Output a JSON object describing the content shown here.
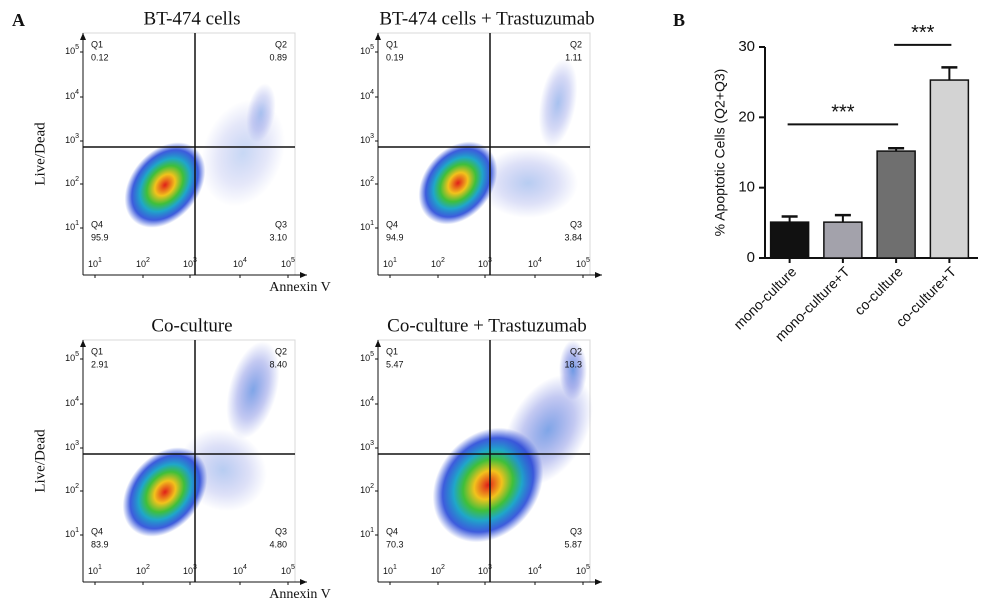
{
  "figure": {
    "panel_a": "A",
    "panel_b": "B",
    "tick_base": "10",
    "tick_exponents": [
      "1",
      "2",
      "3",
      "4",
      "5"
    ],
    "rows": [
      {
        "y_label": "Live/Dead",
        "x_label": "Annexin V",
        "plots": [
          {
            "title": "BT-474 cells",
            "quadrants": [
              {
                "name": "Q1",
                "value": "0.12"
              },
              {
                "name": "Q2",
                "value": "0.89"
              },
              {
                "name": "Q3",
                "value": "3.10"
              },
              {
                "name": "Q4",
                "value": "95.9"
              }
            ]
          },
          {
            "title": "BT-474 cells + Trastuzumab",
            "quadrants": [
              {
                "name": "Q1",
                "value": "0.19"
              },
              {
                "name": "Q2",
                "value": "1.11"
              },
              {
                "name": "Q3",
                "value": "3.84"
              },
              {
                "name": "Q4",
                "value": "94.9"
              }
            ]
          }
        ]
      },
      {
        "y_label": "Live/Dead",
        "x_label": "Annexin V",
        "plots": [
          {
            "title": "Co-culture",
            "quadrants": [
              {
                "name": "Q1",
                "value": "2.91"
              },
              {
                "name": "Q2",
                "value": "8.40"
              },
              {
                "name": "Q3",
                "value": "4.80"
              },
              {
                "name": "Q4",
                "value": "83.9"
              }
            ]
          },
          {
            "title": "Co-culture + Trastuzumab",
            "quadrants": [
              {
                "name": "Q1",
                "value": "5.47"
              },
              {
                "name": "Q2",
                "value": "18.3"
              },
              {
                "name": "Q3",
                "value": "5.87"
              },
              {
                "name": "Q4",
                "value": "70.3"
              }
            ]
          }
        ]
      }
    ]
  },
  "chart_data": {
    "type": "bar",
    "y_label": "% Apoptotic Cells (Q2+Q3)",
    "categories": [
      "mono-culture",
      "mono-culture+T",
      "co-culture",
      "co-culture+T"
    ],
    "values": [
      5.1,
      5.1,
      15.2,
      25.3
    ],
    "errors": [
      0.8,
      1.0,
      0.4,
      1.8
    ],
    "colors": [
      "#111111",
      "#a3a2ab",
      "#6f6f6f",
      "#d3d3d3"
    ],
    "ylim": [
      0,
      30
    ],
    "yticks": [
      0,
      10,
      20,
      30
    ],
    "annotations": [
      {
        "text": "***",
        "from": 0,
        "to": 2,
        "y": 19
      },
      {
        "text": "***",
        "from": 2,
        "to": 3,
        "y": 30.3
      }
    ]
  }
}
